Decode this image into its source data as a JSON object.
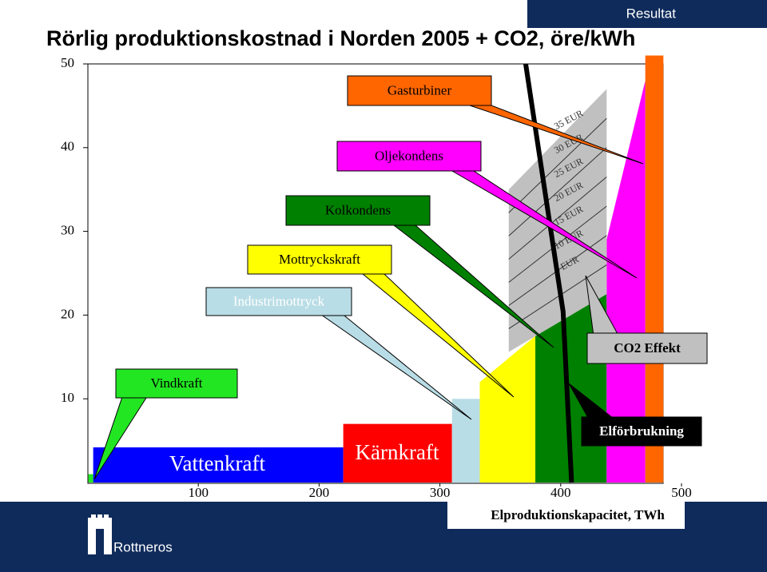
{
  "header": {
    "tag": "Resultat"
  },
  "chart_data": {
    "type": "step-area",
    "title": "Rörlig produktionskostnad i Norden 2005 + CO2, öre/kWh",
    "xlabel": "Elproduktionskapacitet, TWh",
    "xlim": [
      0,
      500
    ],
    "ylim": [
      0,
      50
    ],
    "xticks": [
      100,
      200,
      300,
      400,
      500
    ],
    "yticks": [
      10,
      20,
      30,
      40,
      50
    ],
    "series": [
      {
        "name": "Vindkraft",
        "color": "#22e622",
        "x": [
          9,
          13
        ],
        "values": [
          1,
          1
        ]
      },
      {
        "name": "Vattenkraft",
        "color": "#0000ff",
        "x": [
          13,
          220
        ],
        "values": [
          4.2,
          4.2
        ]
      },
      {
        "name": "Kärnkraft",
        "color": "#ff0000",
        "x": [
          220,
          310
        ],
        "values": [
          7,
          7
        ]
      },
      {
        "name": "Industrimottryck",
        "color": "#b9dde6",
        "x": [
          310,
          333
        ],
        "values": [
          10,
          10
        ]
      },
      {
        "name": "Mottryckskraft",
        "color": "#ffff00",
        "x": [
          333,
          379
        ],
        "values": [
          12,
          17.5
        ]
      },
      {
        "name": "Kolkondens",
        "color": "#008000",
        "x": [
          379,
          438
        ],
        "values": [
          22.5,
          22.5
        ]
      },
      {
        "name": "Oljekondens",
        "color": "#ff00ff",
        "x": [
          438,
          470
        ],
        "values": [
          29,
          48
        ]
      },
      {
        "name": "Gasturbiner",
        "color": "#ff6600",
        "x": [
          470,
          485
        ],
        "values": [
          51,
          51
        ]
      }
    ],
    "co2": {
      "label": "CO2 Effekt",
      "color": "#c0c0c0",
      "x": [
        357,
        438
      ],
      "lower": [
        15.6,
        22.5
      ],
      "upper": [
        35,
        47
      ],
      "levels": [
        "35 EUR",
        "30 EUR",
        "25 EUR",
        "20 EUR",
        "15 EUR",
        "10 EUR",
        "5 EUR"
      ]
    },
    "demand": {
      "label": "Elförbrukning",
      "x": [
        371,
        402,
        409
      ],
      "values": [
        50,
        20.4,
        0
      ]
    }
  },
  "footer": {
    "logo": "Rottneros"
  }
}
